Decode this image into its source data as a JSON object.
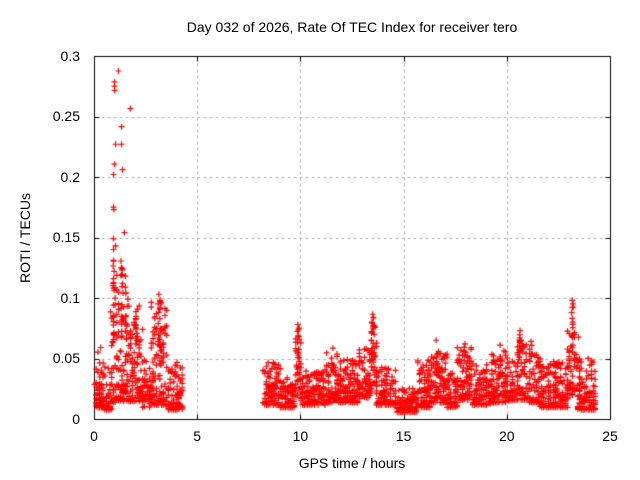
{
  "figure": {
    "title": "Day 032 of 2026, Rate Of TEC Index for receiver tero",
    "xlabel": "GPS time / hours",
    "ylabel": "ROTI / TECUs"
  },
  "chart_data": {
    "type": "scatter",
    "title": "Day 032 of 2026, Rate Of TEC Index for receiver tero",
    "xlabel": "GPS time / hours",
    "ylabel": "ROTI / TECUs",
    "xlim": [
      0,
      25
    ],
    "ylim": [
      0,
      0.3
    ],
    "xticks": [
      {
        "v": 0,
        "label": "0"
      },
      {
        "v": 5,
        "label": "5"
      },
      {
        "v": 10,
        "label": "10"
      },
      {
        "v": 15,
        "label": "15"
      },
      {
        "v": 20,
        "label": "20"
      },
      {
        "v": 25,
        "label": "25"
      }
    ],
    "yticks": [
      {
        "v": 0,
        "label": "0"
      },
      {
        "v": 0.05,
        "label": "0.05"
      },
      {
        "v": 0.1,
        "label": "0.1"
      },
      {
        "v": 0.15,
        "label": "0.15"
      },
      {
        "v": 0.2,
        "label": "0.2"
      },
      {
        "v": 0.25,
        "label": "0.25"
      },
      {
        "v": 0.3,
        "label": "0.3"
      }
    ],
    "grid": true,
    "legend": "none",
    "marker": "plus",
    "marker_color": "#ff0000",
    "grid_color": "#b0b0b0",
    "axis_color": "#000000",
    "data_gap_hours": [
      [
        4.3,
        8.2
      ],
      [
        24.3,
        25.0
      ]
    ],
    "seed": 20260132,
    "points_per_hour": 110,
    "bands_format": "[hour_start, hour_end, roti_min, roti_max, density_weight, spread_shape]",
    "bands": [
      [
        0.02,
        0.45,
        0.01,
        0.058,
        1.3,
        2.0
      ],
      [
        0.45,
        0.85,
        0.008,
        0.048,
        1.1,
        2.0
      ],
      [
        0.85,
        1.05,
        0.012,
        0.11,
        1.0,
        1.6
      ],
      [
        1.05,
        1.55,
        0.015,
        0.12,
        1.2,
        1.8
      ],
      [
        1.55,
        2.3,
        0.015,
        0.095,
        1.2,
        1.9
      ],
      [
        2.3,
        2.75,
        0.01,
        0.05,
        1.0,
        2.0
      ],
      [
        2.75,
        3.5,
        0.012,
        0.098,
        1.2,
        1.9
      ],
      [
        3.5,
        4.3,
        0.008,
        0.048,
        1.0,
        2.2
      ],
      [
        8.2,
        9.0,
        0.012,
        0.048,
        1.1,
        2.0
      ],
      [
        9.0,
        9.7,
        0.01,
        0.036,
        1.1,
        2.0
      ],
      [
        9.7,
        10.0,
        0.02,
        0.07,
        0.9,
        1.4
      ],
      [
        10.0,
        11.2,
        0.012,
        0.04,
        1.1,
        2.0
      ],
      [
        11.2,
        11.9,
        0.014,
        0.056,
        1.1,
        1.9
      ],
      [
        11.9,
        12.8,
        0.014,
        0.05,
        1.1,
        1.9
      ],
      [
        12.8,
        13.35,
        0.018,
        0.06,
        1.1,
        1.8
      ],
      [
        13.35,
        13.65,
        0.025,
        0.078,
        0.9,
        1.3
      ],
      [
        13.65,
        14.6,
        0.012,
        0.045,
        1.1,
        2.0
      ],
      [
        14.6,
        15.6,
        0.006,
        0.026,
        1.1,
        1.8
      ],
      [
        15.6,
        16.3,
        0.01,
        0.05,
        1.1,
        2.0
      ],
      [
        16.3,
        17.1,
        0.014,
        0.058,
        1.1,
        1.9
      ],
      [
        17.1,
        17.6,
        0.01,
        0.04,
        1.0,
        2.0
      ],
      [
        17.6,
        18.3,
        0.016,
        0.06,
        1.1,
        1.8
      ],
      [
        18.3,
        19.2,
        0.012,
        0.046,
        1.1,
        2.0
      ],
      [
        19.2,
        20.1,
        0.014,
        0.058,
        1.1,
        1.9
      ],
      [
        20.1,
        20.45,
        0.016,
        0.048,
        0.8,
        1.8
      ],
      [
        20.45,
        21.05,
        0.016,
        0.066,
        1.0,
        1.7
      ],
      [
        21.05,
        21.6,
        0.014,
        0.058,
        1.0,
        1.8
      ],
      [
        21.6,
        22.9,
        0.01,
        0.048,
        1.2,
        2.0
      ],
      [
        22.9,
        23.35,
        0.02,
        0.075,
        0.9,
        1.4
      ],
      [
        23.35,
        24.3,
        0.008,
        0.052,
        1.1,
        2.0
      ]
    ],
    "columns_format": "[hour_center, hour_half_width, roti_min, roti_max, n_points]",
    "columns": [
      [
        0.92,
        0.04,
        0.06,
        0.135,
        16
      ],
      [
        1.32,
        0.05,
        0.055,
        0.125,
        14
      ],
      [
        1.55,
        0.04,
        0.05,
        0.118,
        8
      ],
      [
        2.0,
        0.07,
        0.045,
        0.092,
        10
      ],
      [
        3.15,
        0.12,
        0.045,
        0.1,
        16
      ],
      [
        9.85,
        0.07,
        0.04,
        0.076,
        12
      ],
      [
        11.55,
        0.07,
        0.035,
        0.056,
        6
      ],
      [
        13.5,
        0.1,
        0.05,
        0.085,
        12
      ],
      [
        16.65,
        0.07,
        0.035,
        0.058,
        6
      ],
      [
        17.95,
        0.08,
        0.035,
        0.06,
        7
      ],
      [
        19.65,
        0.07,
        0.035,
        0.058,
        6
      ],
      [
        20.65,
        0.1,
        0.04,
        0.07,
        9
      ],
      [
        21.15,
        0.07,
        0.035,
        0.062,
        6
      ],
      [
        23.18,
        0.08,
        0.045,
        0.096,
        11
      ]
    ],
    "outliers_format": "[hour, roti]",
    "outliers": [
      [
        1.16,
        0.288
      ],
      [
        0.97,
        0.279
      ],
      [
        0.97,
        0.2755
      ],
      [
        0.98,
        0.272
      ],
      [
        1.74,
        0.257
      ],
      [
        1.31,
        0.242
      ],
      [
        1.02,
        0.2275
      ],
      [
        1.31,
        0.2275
      ],
      [
        0.97,
        0.211
      ],
      [
        1.36,
        0.2065
      ],
      [
        0.92,
        0.2025
      ],
      [
        0.92,
        0.1755
      ],
      [
        0.94,
        0.1735
      ],
      [
        1.45,
        0.1545
      ],
      [
        0.92,
        0.1495
      ],
      [
        1.02,
        0.1435
      ],
      [
        0.92,
        0.1405
      ],
      [
        1.28,
        0.131
      ],
      [
        0.92,
        0.1315
      ],
      [
        1.3,
        0.1255
      ],
      [
        0.95,
        0.1225
      ],
      [
        1.33,
        0.1195
      ],
      [
        0.92,
        0.1165
      ],
      [
        1.36,
        0.1125
      ],
      [
        0.92,
        0.1085
      ],
      [
        1.38,
        0.1045
      ],
      [
        0.78,
        0.089
      ],
      [
        1.62,
        0.0995
      ],
      [
        3.12,
        0.1035
      ],
      [
        3.18,
        0.0985
      ],
      [
        3.22,
        0.0955
      ],
      [
        9.85,
        0.0785
      ],
      [
        9.87,
        0.074
      ],
      [
        13.48,
        0.087
      ],
      [
        13.52,
        0.0845
      ],
      [
        13.44,
        0.0805
      ],
      [
        13.56,
        0.077
      ],
      [
        23.15,
        0.0985
      ],
      [
        23.18,
        0.0955
      ],
      [
        23.15,
        0.0835
      ],
      [
        23.17,
        0.0805
      ],
      [
        20.62,
        0.0735
      ],
      [
        20.6,
        0.07
      ],
      [
        23.45,
        0.068
      ],
      [
        16.55,
        0.0655
      ],
      [
        21.15,
        0.0645
      ],
      [
        0.3,
        0.0595
      ],
      [
        11.55,
        0.059
      ],
      [
        17.95,
        0.0625
      ],
      [
        19.65,
        0.0615
      ]
    ]
  }
}
